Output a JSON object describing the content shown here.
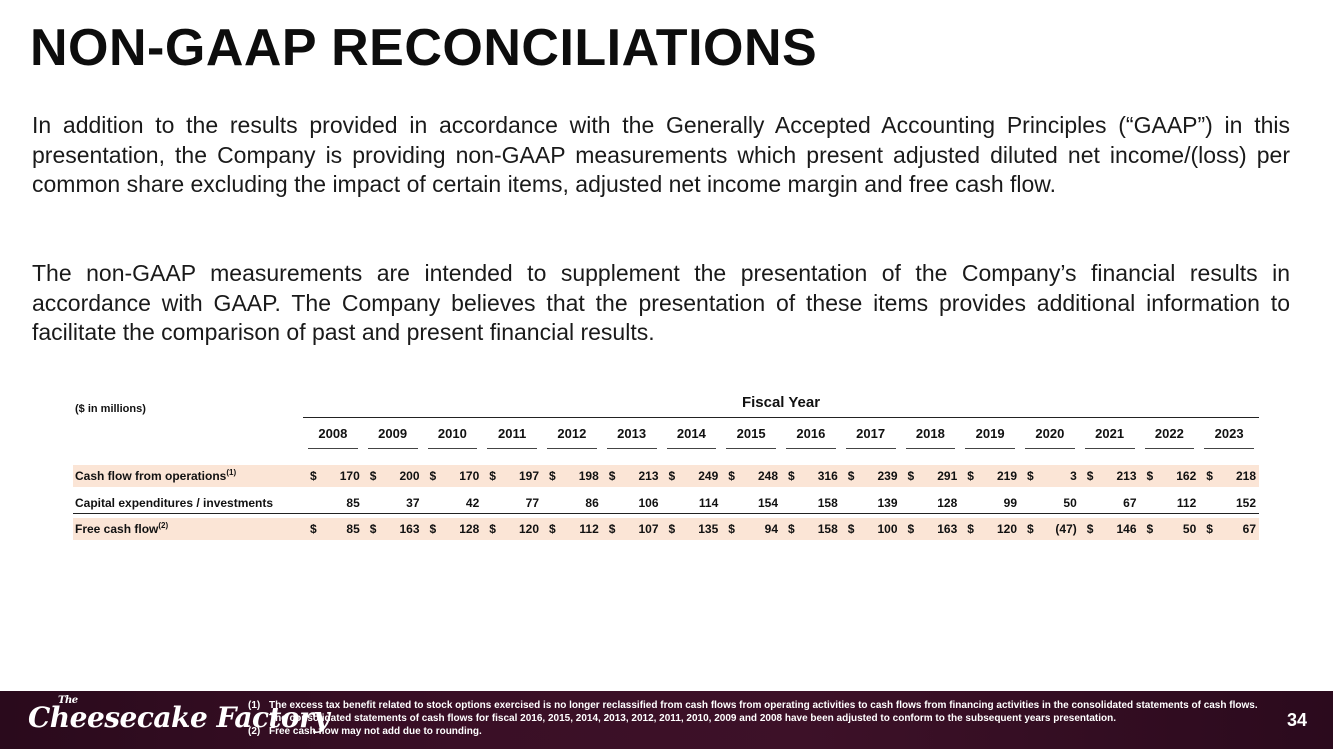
{
  "title": "NON-GAAP RECONCILIATIONS",
  "paragraphs": [
    "In addition to the results provided in accordance with the Generally Accepted Accounting Principles (“GAAP”) in this presentation, the Company is providing non-GAAP measurements which present adjusted diluted net income/(loss) per common share excluding the impact of certain items, adjusted net income margin and free cash flow.",
    "The non-GAAP measurements are intended to supplement the presentation of the Company’s financial results in accordance with GAAP.  The Company believes that the presentation of these items provides additional information to facilitate the comparison of past and present financial results."
  ],
  "table": {
    "units": "($ in millions)",
    "group_header": "Fiscal Year",
    "years": [
      "2008",
      "2009",
      "2010",
      "2011",
      "2012",
      "2013",
      "2014",
      "2015",
      "2016",
      "2017",
      "2018",
      "2019",
      "2020",
      "2021",
      "2022",
      "2023"
    ],
    "rows": [
      {
        "label": "Cash flow from operations",
        "superscript": "(1)",
        "currency": "$",
        "values": [
          "170",
          "200",
          "170",
          "197",
          "198",
          "213",
          "249",
          "248",
          "316",
          "239",
          "291",
          "219",
          "3",
          "213",
          "162",
          "218"
        ]
      },
      {
        "label": "Capital expenditures / investments",
        "superscript": "",
        "currency": "",
        "values": [
          "85",
          "37",
          "42",
          "77",
          "86",
          "106",
          "114",
          "154",
          "158",
          "139",
          "128",
          "99",
          "50",
          "67",
          "112",
          "152"
        ]
      },
      {
        "label": "Free cash flow",
        "superscript": "(2)",
        "currency": "$",
        "values": [
          "85",
          "163",
          "128",
          "120",
          "112",
          "107",
          "135",
          "94",
          "158",
          "100",
          "163",
          "120",
          "(47)",
          "146",
          "50",
          "67"
        ]
      }
    ]
  },
  "footer": {
    "logo_small": "The",
    "logo_text": "Cheesecake Factory",
    "notes": [
      {
        "num": "(1)",
        "text": "The excess tax benefit related to stock options exercised is no longer reclassified from cash flows from operating activities to cash flows from financing activities in the consolidated statements of cash flows. The consolidated statements of cash flows for fiscal 2016, 2015, 2014, 2013, 2012, 2011, 2010, 2009 and 2008 have been adjusted to conform to the subsequent years presentation."
      },
      {
        "num": "(2)",
        "text": "Free cash flow may not add due to rounding."
      }
    ],
    "page_number": "34"
  },
  "colors": {
    "row_shade": "#fbe5d6",
    "footer_bg": "#3a0f26"
  }
}
